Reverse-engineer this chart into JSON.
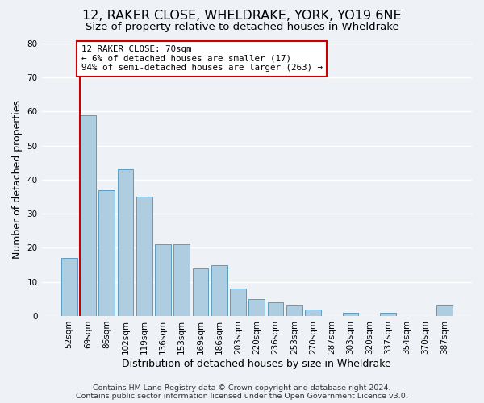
{
  "title": "12, RAKER CLOSE, WHELDRAKE, YORK, YO19 6NE",
  "subtitle": "Size of property relative to detached houses in Wheldrake",
  "xlabel": "Distribution of detached houses by size in Wheldrake",
  "ylabel": "Number of detached properties",
  "bar_labels": [
    "52sqm",
    "69sqm",
    "86sqm",
    "102sqm",
    "119sqm",
    "136sqm",
    "153sqm",
    "169sqm",
    "186sqm",
    "203sqm",
    "220sqm",
    "236sqm",
    "253sqm",
    "270sqm",
    "287sqm",
    "303sqm",
    "320sqm",
    "337sqm",
    "354sqm",
    "370sqm",
    "387sqm"
  ],
  "bar_heights": [
    17,
    59,
    37,
    43,
    35,
    21,
    21,
    14,
    15,
    8,
    5,
    4,
    3,
    2,
    0,
    1,
    0,
    1,
    0,
    0,
    3
  ],
  "bar_color": "#aecde1",
  "bar_edge_color": "#5b9cc0",
  "highlight_bar_index": 1,
  "highlight_line_color": "#cc0000",
  "ylim": [
    0,
    80
  ],
  "yticks": [
    0,
    10,
    20,
    30,
    40,
    50,
    60,
    70,
    80
  ],
  "annotation_line1": "12 RAKER CLOSE: 70sqm",
  "annotation_line2": "← 6% of detached houses are smaller (17)",
  "annotation_line3": "94% of semi-detached houses are larger (263) →",
  "annotation_box_color": "#ffffff",
  "annotation_box_edge": "#cc0000",
  "footer_line1": "Contains HM Land Registry data © Crown copyright and database right 2024.",
  "footer_line2": "Contains public sector information licensed under the Open Government Licence v3.0.",
  "background_color": "#eef2f7",
  "grid_color": "#ffffff",
  "title_fontsize": 11.5,
  "subtitle_fontsize": 9.5,
  "axis_label_fontsize": 9,
  "tick_fontsize": 7.5,
  "footer_fontsize": 6.8
}
